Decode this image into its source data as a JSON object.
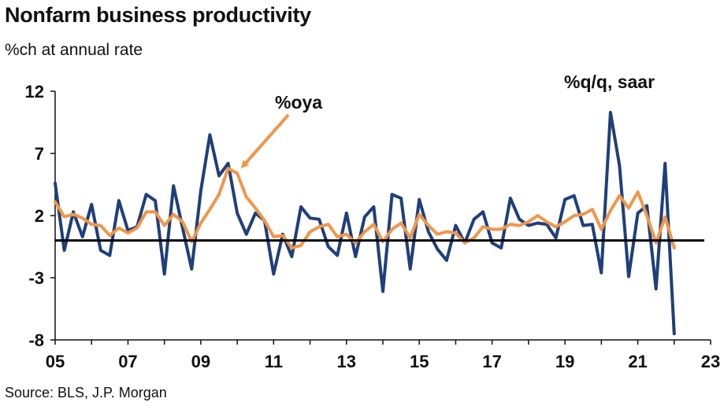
{
  "header": {
    "title": "Nonfarm business productivity",
    "subtitle": "%ch at annual rate",
    "source": "Source: BLS, J.P. Morgan"
  },
  "chart_data": {
    "type": "line",
    "xlim": [
      2005,
      2023
    ],
    "ylim": [
      -8,
      12
    ],
    "x_ticks": [
      {
        "value": 2005,
        "label": "05"
      },
      {
        "value": 2007,
        "label": "07"
      },
      {
        "value": 2009,
        "label": "09"
      },
      {
        "value": 2011,
        "label": "11"
      },
      {
        "value": 2013,
        "label": "13"
      },
      {
        "value": 2015,
        "label": "15"
      },
      {
        "value": 2017,
        "label": "17"
      },
      {
        "value": 2019,
        "label": "19"
      },
      {
        "value": 2021,
        "label": "21"
      },
      {
        "value": 2023,
        "label": "23"
      }
    ],
    "y_ticks": [
      {
        "value": 12,
        "label": "12"
      },
      {
        "value": 7,
        "label": "7"
      },
      {
        "value": 2,
        "label": "2"
      },
      {
        "value": -3,
        "label": "-3"
      },
      {
        "value": -8,
        "label": "-8"
      }
    ],
    "reference_line": 0,
    "grid": false,
    "colors": {
      "qq": "#1f3f7a",
      "oya": "#f0964a",
      "zero": "#000000"
    },
    "series": [
      {
        "name": "%q/q, saar",
        "color": "#1f3f7a",
        "x_start": 2005.0,
        "step": 0.25,
        "values": [
          4.6,
          -0.8,
          2.3,
          0.3,
          2.9,
          -0.8,
          -1.2,
          3.2,
          0.8,
          1.1,
          3.7,
          3.2,
          -2.7,
          4.4,
          1.0,
          -2.3,
          4.0,
          8.5,
          5.2,
          6.2,
          2.2,
          0.5,
          2.2,
          1.6,
          -2.7,
          0.5,
          -1.3,
          2.7,
          1.8,
          1.7,
          -0.5,
          -1.2,
          2.2,
          -1.3,
          1.9,
          2.7,
          -4.1,
          3.7,
          3.4,
          -2.3,
          3.3,
          0.7,
          -0.7,
          -1.6,
          1.2,
          -0.2,
          1.7,
          2.3,
          -0.2,
          -0.6,
          3.4,
          1.7,
          1.2,
          1.4,
          1.3,
          0.2,
          3.3,
          3.6,
          1.2,
          1.3,
          -2.6,
          10.3,
          6.0,
          -2.9,
          2.2,
          2.8,
          -3.9,
          6.2,
          -7.5
        ]
      },
      {
        "name": "%oya",
        "color": "#f0964a",
        "x_start": 2005.0,
        "step": 0.25,
        "values": [
          3.1,
          1.9,
          2.1,
          1.8,
          1.3,
          1.2,
          0.4,
          1.0,
          0.6,
          1.0,
          2.3,
          2.3,
          1.2,
          2.1,
          1.5,
          -0.1,
          1.4,
          2.5,
          3.7,
          5.8,
          5.4,
          3.5,
          2.6,
          1.6,
          0.3,
          0.4,
          -0.6,
          -0.4,
          0.7,
          1.1,
          1.3,
          0.3,
          0.5,
          -0.2,
          0.7,
          1.3,
          -0.1,
          0.9,
          1.4,
          0.2,
          2.1,
          1.2,
          0.5,
          0.7,
          0.6,
          -0.2,
          0.2,
          1.1,
          0.9,
          0.9,
          1.3,
          1.2,
          1.5,
          2.0,
          1.5,
          1.1,
          1.5,
          2.0,
          2.1,
          2.5,
          0.9,
          2.4,
          3.6,
          2.6,
          3.9,
          2.0,
          -0.2,
          1.9,
          -0.6
        ]
      }
    ],
    "annotations": [
      {
        "label": "%oya",
        "series": "%oya"
      },
      {
        "label": "%q/q, saar",
        "series": "%q/q, saar"
      }
    ]
  }
}
